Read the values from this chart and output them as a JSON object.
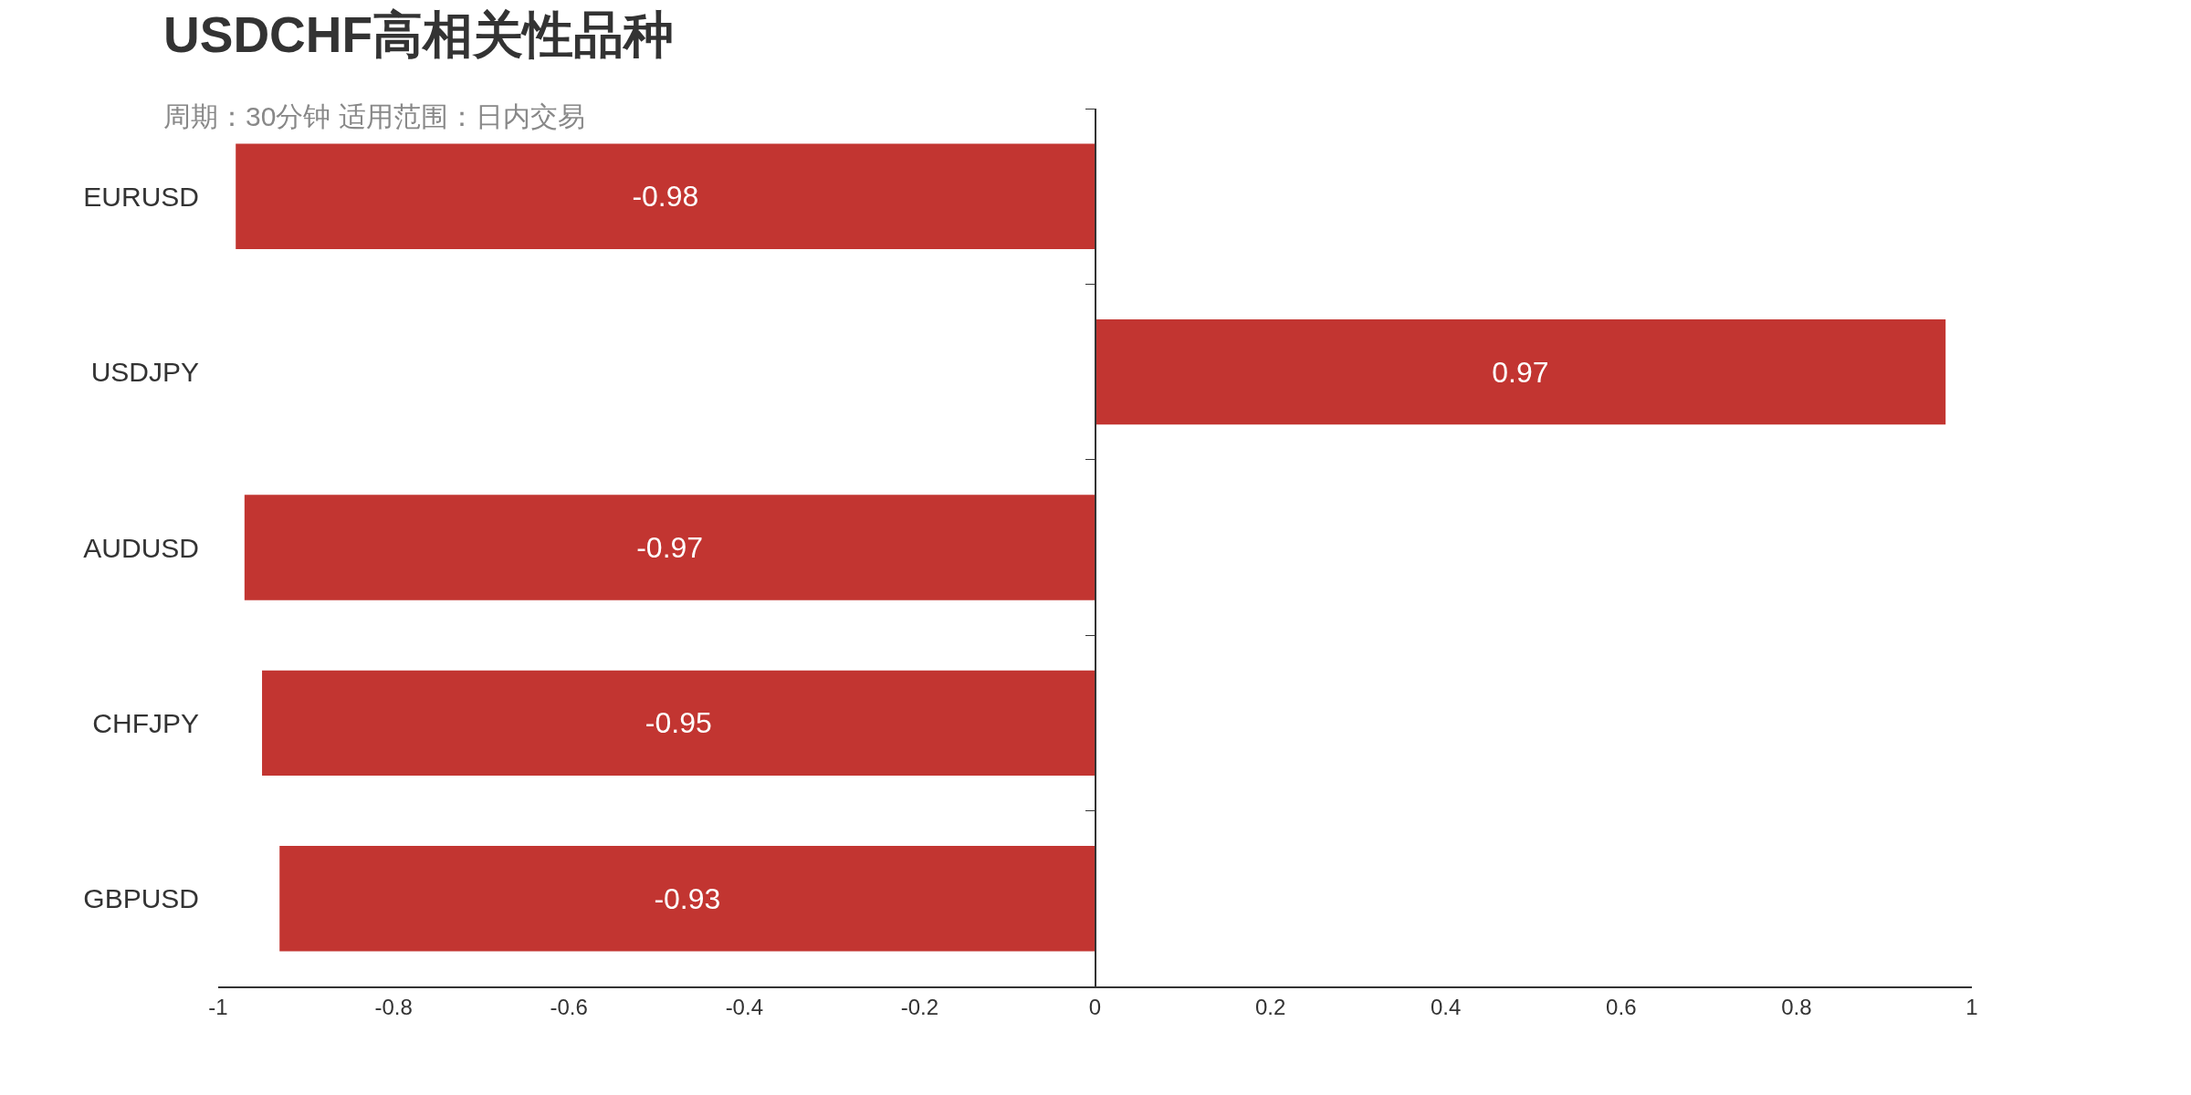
{
  "chart_data": {
    "type": "bar",
    "orientation": "horizontal",
    "title": "USDCHF高相关性品种",
    "subtitle": "周期：30分钟 适用范围：日内交易",
    "categories": [
      "EURUSD",
      "USDJPY",
      "AUDUSD",
      "CHFJPY",
      "GBPUSD"
    ],
    "values": [
      -0.98,
      0.97,
      -0.97,
      -0.95,
      -0.93
    ],
    "color": "#c23531",
    "xlim": [
      -1,
      1
    ],
    "xticks": [
      -1,
      -0.8,
      -0.6,
      -0.4,
      -0.2,
      0,
      0.2,
      0.4,
      0.6,
      0.8,
      1
    ],
    "data_labels": true,
    "legend": false
  }
}
